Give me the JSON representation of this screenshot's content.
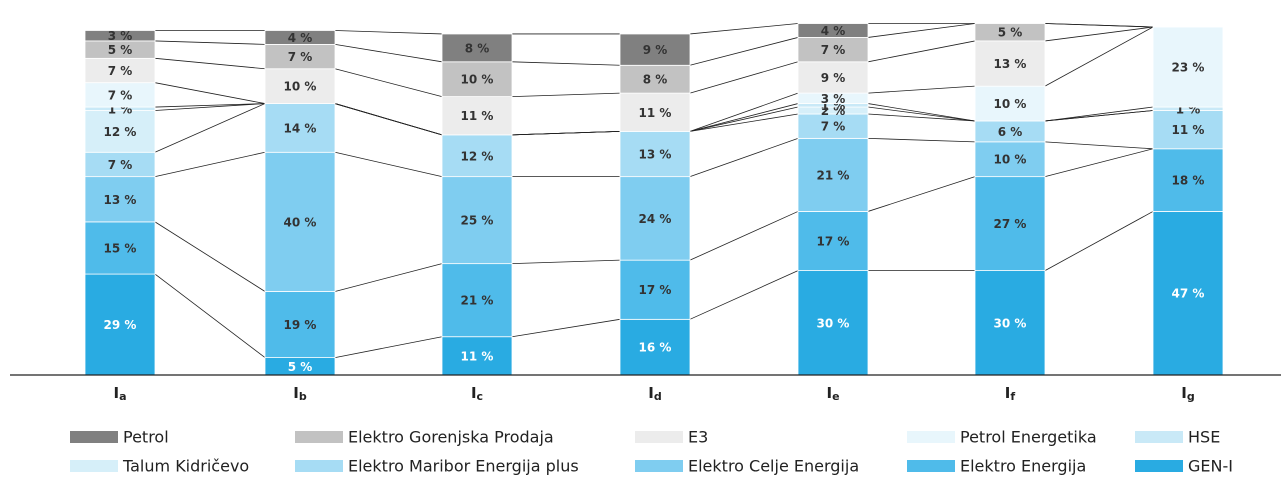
{
  "chart_data": {
    "type": "stacked_bar",
    "categories": [
      "Ia",
      "Ib",
      "Ic",
      "Id",
      "Ie",
      "If",
      "Ig"
    ],
    "ylim": [
      0,
      100
    ],
    "series": [
      {
        "name": "Petrol",
        "color": "#808080",
        "values": [
          3,
          4,
          8,
          9,
          4,
          null,
          null
        ],
        "value_labels": [
          "3 %",
          "4 %",
          "8 %",
          "9 %",
          "4 %",
          null,
          null
        ]
      },
      {
        "name": "Elektro Gorenjska Prodaja",
        "color": "#c2c2c2",
        "values": [
          5,
          7,
          10,
          8,
          7,
          5,
          null
        ],
        "value_labels": [
          "5 %",
          "7 %",
          "10 %",
          "8 %",
          "7 %",
          "5 %",
          null
        ]
      },
      {
        "name": "E3",
        "color": "#ececec",
        "values": [
          7,
          10,
          11,
          11,
          9,
          13,
          null
        ],
        "value_labels": [
          "7 %",
          "10 %",
          "11 %",
          "11 %",
          "9 %",
          "13 %",
          null
        ]
      },
      {
        "name": "Petrol Energetika",
        "color": "#e8f6fc",
        "values": [
          7,
          null,
          null,
          null,
          3,
          10,
          23
        ],
        "value_labels": [
          "7 %",
          null,
          null,
          null,
          "3 %",
          "10 %",
          "23 %"
        ]
      },
      {
        "name": "HSE",
        "color": "#c9e9f7",
        "values": [
          1,
          null,
          null,
          null,
          1,
          null,
          1
        ],
        "value_labels": [
          "1 %",
          null,
          null,
          null,
          "1 %",
          null,
          "1 %"
        ]
      },
      {
        "name": "Talum Kidričevo",
        "color": "#d6eff9",
        "values": [
          12,
          null,
          null,
          null,
          2,
          null,
          null
        ],
        "value_labels": [
          "12 %",
          null,
          null,
          null,
          "2 %",
          null,
          null
        ]
      },
      {
        "name": "Elektro Maribor Energija plus",
        "color": "#a6dcf4",
        "values": [
          7,
          14,
          12,
          13,
          7,
          6,
          11
        ],
        "value_labels": [
          "7 %",
          "14 %",
          "12 %",
          "13 %",
          "7 %",
          "6 %",
          "11 %"
        ]
      },
      {
        "name": "Elektro Celje Energija",
        "color": "#7fcdf0",
        "values": [
          13,
          40,
          25,
          24,
          21,
          10,
          null
        ],
        "value_labels": [
          "13 %",
          "40 %",
          "25 %",
          "24 %",
          "21 %",
          "10 %",
          null
        ]
      },
      {
        "name": "Elektro Energija",
        "color": "#4fbbea",
        "values": [
          15,
          19,
          21,
          17,
          17,
          27,
          18
        ],
        "value_labels": [
          "15 %",
          "19 %",
          "21 %",
          "17 %",
          "17 %",
          "27 %",
          "18 %"
        ]
      },
      {
        "name": "GEN-I",
        "color": "#29abe2",
        "values": [
          29,
          5,
          11,
          16,
          30,
          30,
          47
        ],
        "value_labels": [
          "29 %",
          "5 %",
          "11 %",
          "16 %",
          "30 %",
          "30 %",
          "47 %"
        ]
      }
    ]
  }
}
